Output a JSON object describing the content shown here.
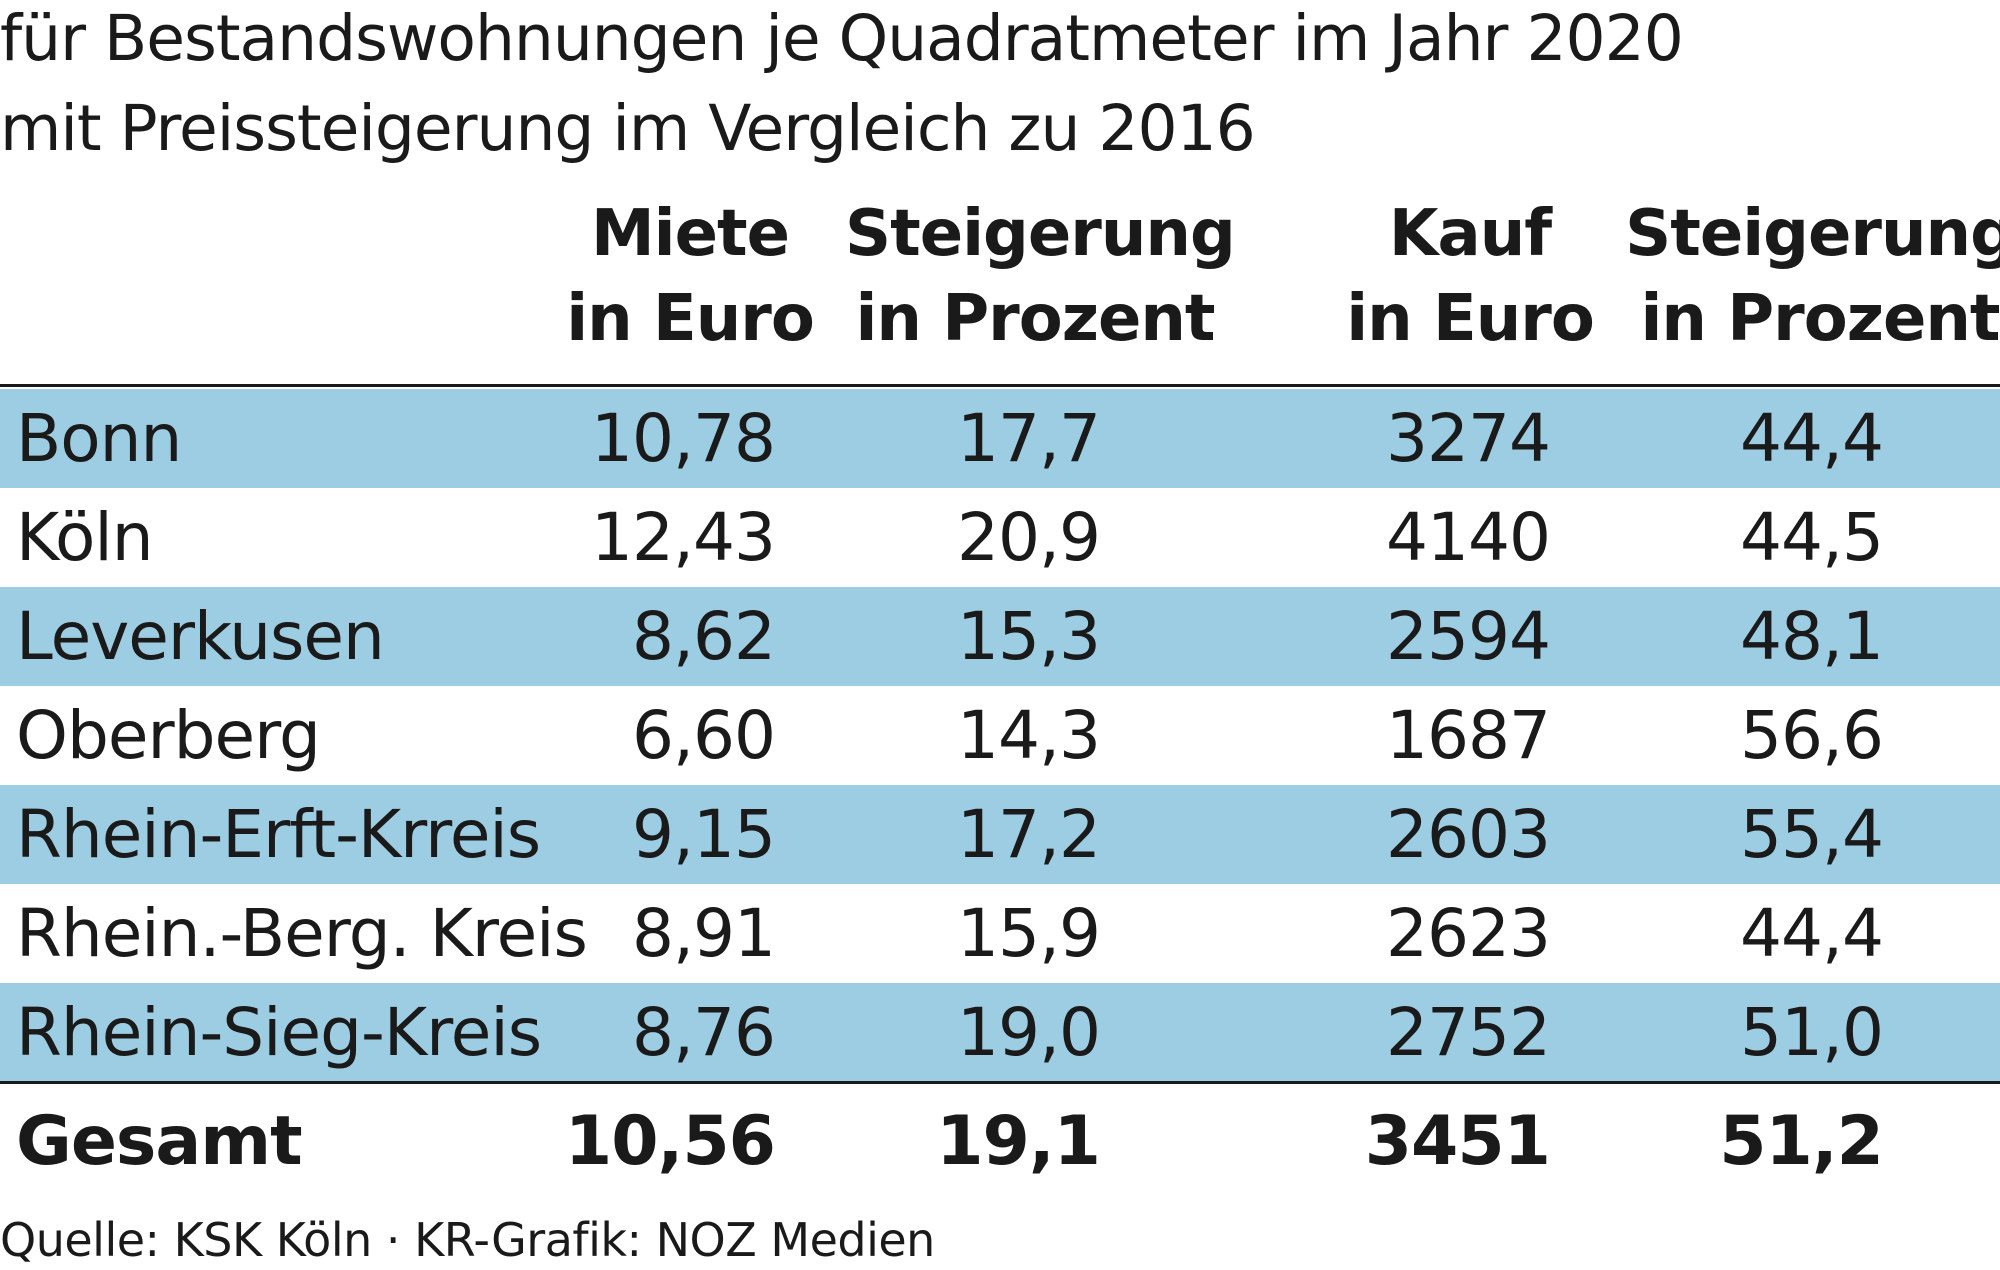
{
  "chart_data": {
    "type": "table",
    "title": "",
    "subtitle_lines": [
      "für Bestandswohnungen je Quadratmeter im Jahr 2020",
      "mit Preissteigerung im Vergleich zu 2016"
    ],
    "columns": [
      {
        "line1": "Miete",
        "line2": "in Euro"
      },
      {
        "line1": "Steigerung",
        "line2": "in Prozent"
      },
      {
        "line1": "Kauf",
        "line2": "in Euro"
      },
      {
        "line1": "Steigerung",
        "line2": "in Prozent"
      }
    ],
    "rows": [
      {
        "name": "Bonn",
        "miete": "10,78",
        "steigerung_miete": "17,7",
        "kauf": "3274",
        "steigerung_kauf": "44,4"
      },
      {
        "name": "Köln",
        "miete": "12,43",
        "steigerung_miete": "20,9",
        "kauf": "4140",
        "steigerung_kauf": "44,5"
      },
      {
        "name": "Leverkusen",
        "miete": "8,62",
        "steigerung_miete": "15,3",
        "kauf": "2594",
        "steigerung_kauf": "48,1"
      },
      {
        "name": "Oberberg",
        "miete": "6,60",
        "steigerung_miete": "14,3",
        "kauf": "1687",
        "steigerung_kauf": "56,6"
      },
      {
        "name": "Rhein-Erft-Krreis",
        "miete": "9,15",
        "steigerung_miete": "17,2",
        "kauf": "2603",
        "steigerung_kauf": "55,4"
      },
      {
        "name": "Rhein.-Berg. Kreis",
        "miete": "8,91",
        "steigerung_miete": "15,9",
        "kauf": "2623",
        "steigerung_kauf": "44,4"
      },
      {
        "name": "Rhein-Sieg-Kreis",
        "miete": "8,76",
        "steigerung_miete": "19,0",
        "kauf": "2752",
        "steigerung_kauf": "51,0"
      }
    ],
    "total": {
      "name": "Gesamt",
      "miete": "10,56",
      "steigerung_miete": "19,1",
      "kauf": "3451",
      "steigerung_kauf": "51,2"
    },
    "source": "Quelle: KSK Köln · KR-Grafik: NOZ Medien",
    "row_shading_color": "#9dcde3",
    "shaded_rows": "alternating, starting with first row"
  }
}
